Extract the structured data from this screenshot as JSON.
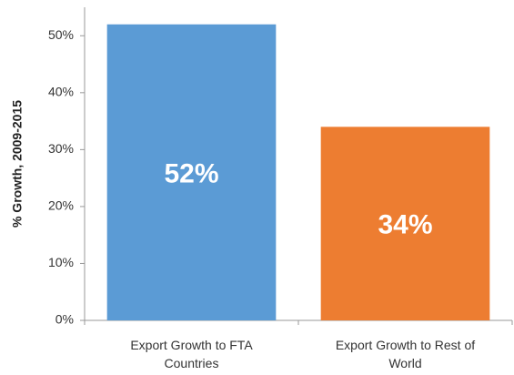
{
  "chart_data": {
    "type": "bar",
    "y_label": "% Growth, 2009-2015",
    "categories": [
      "Export Growth to FTA Countries",
      "Export Growth to Rest of World"
    ],
    "values": [
      52,
      34
    ],
    "value_labels": [
      "52%",
      "34%"
    ],
    "colors": [
      "#5b9bd5",
      "#ed7d31"
    ],
    "ylim": [
      0,
      55
    ],
    "yticks": [
      {
        "value": 0,
        "label": "0%"
      },
      {
        "value": 10,
        "label": "10%"
      },
      {
        "value": 20,
        "label": "20%"
      },
      {
        "value": 30,
        "label": "30%"
      },
      {
        "value": 40,
        "label": "40%"
      },
      {
        "value": 50,
        "label": "50%"
      }
    ],
    "grid": false
  }
}
